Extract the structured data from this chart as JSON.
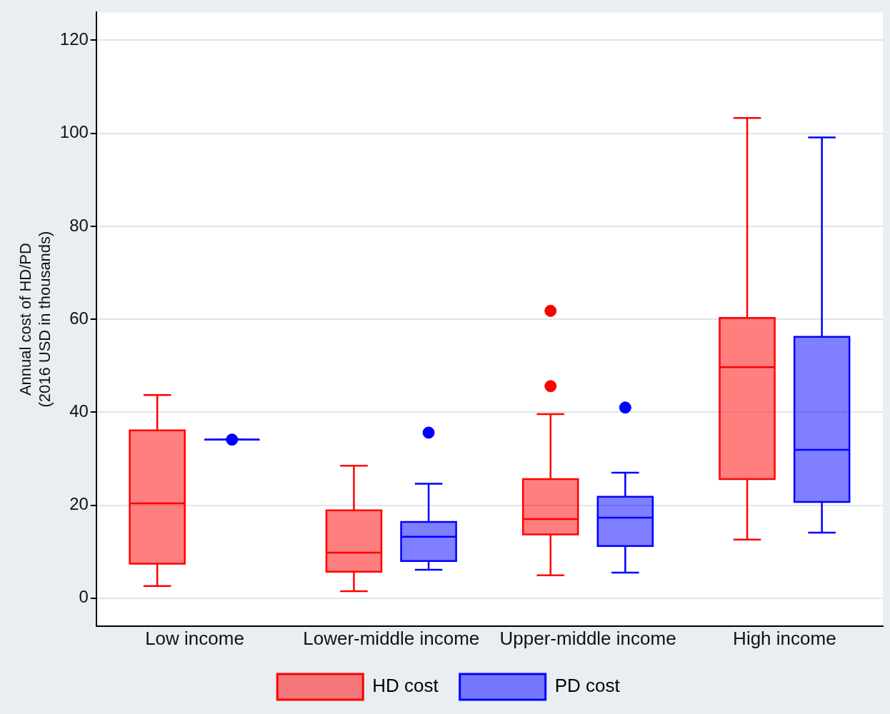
{
  "chart_data": {
    "type": "box",
    "ylabel": "Annual cost of HD/PD\n(2016 USD in thousands)",
    "categories": [
      "Low income",
      "Lower-middle income",
      "Upper-middle income",
      "High income"
    ],
    "ylim": [
      -6,
      126
    ],
    "yticks": [
      0,
      20,
      40,
      60,
      80,
      100,
      120
    ],
    "grid": "y",
    "legend": "bottom",
    "series": [
      {
        "name": "HD cost",
        "color": "#ff0000",
        "boxes": [
          {
            "low": 2.6,
            "q1": 7.4,
            "median": 20.4,
            "q3": 36.1,
            "high": 43.7
          },
          {
            "low": 1.5,
            "q1": 5.7,
            "median": 9.8,
            "q3": 18.9,
            "high": 28.5
          },
          {
            "low": 4.9,
            "q1": 13.7,
            "median": 17.0,
            "q3": 25.6,
            "high": 39.6,
            "outliers": [
              61.8,
              45.6
            ]
          },
          {
            "low": 12.6,
            "q1": 25.6,
            "median": 49.7,
            "q3": 60.3,
            "high": 103.3
          }
        ]
      },
      {
        "name": "PD cost",
        "color": "#0000ff",
        "boxes": [
          {
            "low": 34.1,
            "q1": 34.1,
            "median": 34.1,
            "q3": 34.1,
            "high": 34.1,
            "outliers": [
              34.1
            ]
          },
          {
            "low": 6.1,
            "q1": 8.0,
            "median": 13.2,
            "q3": 16.4,
            "high": 24.6,
            "outliers": [
              35.6
            ]
          },
          {
            "low": 5.5,
            "q1": 11.2,
            "median": 17.3,
            "q3": 21.8,
            "high": 27.0,
            "outliers": [
              41.0
            ]
          },
          {
            "low": 14.1,
            "q1": 20.7,
            "median": 31.9,
            "q3": 56.2,
            "high": 99.1
          }
        ]
      }
    ]
  }
}
